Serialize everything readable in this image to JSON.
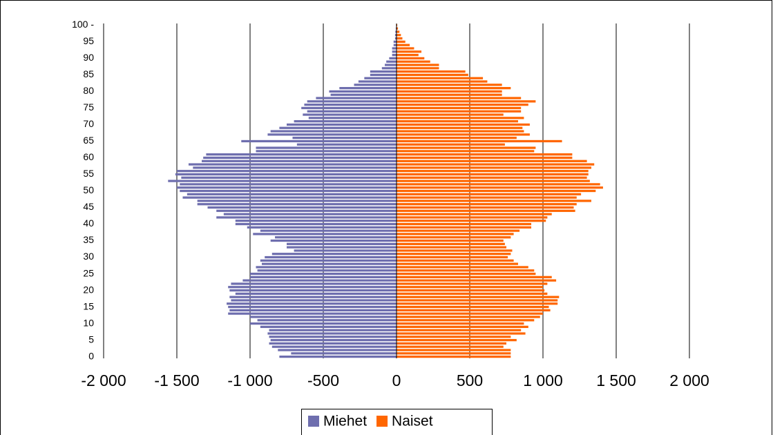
{
  "chart_data": {
    "type": "pyramid",
    "categories": [
      "0",
      null,
      null,
      null,
      null,
      "5",
      null,
      null,
      null,
      null,
      "10",
      null,
      null,
      null,
      null,
      "15",
      null,
      null,
      null,
      null,
      "20",
      null,
      null,
      null,
      null,
      "25",
      null,
      null,
      null,
      null,
      "30",
      null,
      null,
      null,
      null,
      "35",
      null,
      null,
      null,
      null,
      "40",
      null,
      null,
      null,
      null,
      "45",
      null,
      null,
      null,
      null,
      "50",
      null,
      null,
      null,
      null,
      "55",
      null,
      null,
      null,
      null,
      "60",
      null,
      null,
      null,
      null,
      "65",
      null,
      null,
      null,
      null,
      "70",
      null,
      null,
      null,
      null,
      "75",
      null,
      null,
      null,
      null,
      "80",
      null,
      null,
      null,
      null,
      "85",
      null,
      null,
      null,
      null,
      "90",
      null,
      null,
      null,
      null,
      "95",
      null,
      null,
      null,
      null,
      "100 -"
    ],
    "series": [
      {
        "name": "Miehet",
        "color": "#6e6eae",
        "values": [
          -800,
          -720,
          -810,
          -850,
          -870,
          -860,
          -870,
          -880,
          -870,
          -930,
          -1000,
          -950,
          -1000,
          -1150,
          -1140,
          -1150,
          -1160,
          -1130,
          -1140,
          -1100,
          -1140,
          -1150,
          -1130,
          -1050,
          -1000,
          -1000,
          -950,
          -960,
          -920,
          -930,
          -900,
          -850,
          -700,
          -750,
          -750,
          -860,
          -830,
          -980,
          -930,
          -1020,
          -1100,
          -1100,
          -1230,
          -1180,
          -1230,
          -1290,
          -1360,
          -1360,
          -1460,
          -1430,
          -1480,
          -1500,
          -1480,
          -1560,
          -1470,
          -1510,
          -1500,
          -1390,
          -1420,
          -1330,
          -1320,
          -1300,
          -960,
          -960,
          -680,
          -1060,
          -710,
          -880,
          -860,
          -800,
          -750,
          -700,
          -600,
          -640,
          -610,
          -650,
          -630,
          -610,
          -550,
          -450,
          -460,
          -390,
          -290,
          -260,
          -220,
          -180,
          -180,
          -100,
          -80,
          -70,
          -50,
          -30,
          -30,
          -30,
          -20,
          -20,
          -10,
          -10,
          -8,
          -5,
          -3
        ]
      },
      {
        "name": "Naiset",
        "color": "#ff6600",
        "values": [
          780,
          780,
          780,
          730,
          750,
          820,
          780,
          880,
          850,
          900,
          870,
          940,
          980,
          1000,
          1050,
          1040,
          1100,
          1100,
          1110,
          1030,
          1010,
          1000,
          1030,
          1090,
          1060,
          950,
          940,
          900,
          830,
          800,
          760,
          780,
          790,
          750,
          740,
          730,
          780,
          800,
          840,
          920,
          920,
          1020,
          1030,
          1060,
          1220,
          1210,
          1230,
          1330,
          1230,
          1260,
          1360,
          1410,
          1390,
          1320,
          1300,
          1310,
          1310,
          1330,
          1350,
          1300,
          1200,
          1200,
          940,
          950,
          740,
          1130,
          820,
          910,
          870,
          860,
          910,
          830,
          870,
          730,
          850,
          850,
          900,
          950,
          850,
          720,
          720,
          780,
          720,
          620,
          590,
          490,
          470,
          290,
          290,
          230,
          190,
          150,
          170,
          120,
          90,
          60,
          40,
          30,
          20,
          10,
          5
        ]
      }
    ],
    "xlim": [
      -2000,
      2000
    ],
    "xticks": [
      {
        "value": -2000,
        "label": "-2 000"
      },
      {
        "value": -1500,
        "label": "-1 500"
      },
      {
        "value": -1000,
        "label": "-1 000"
      },
      -500,
      0,
      500,
      {
        "value": 1000,
        "label": "1 000"
      },
      {
        "value": 1500,
        "label": "1 500"
      },
      {
        "value": 2000,
        "label": "2 000"
      }
    ],
    "grid": true,
    "legend": "bottom"
  }
}
